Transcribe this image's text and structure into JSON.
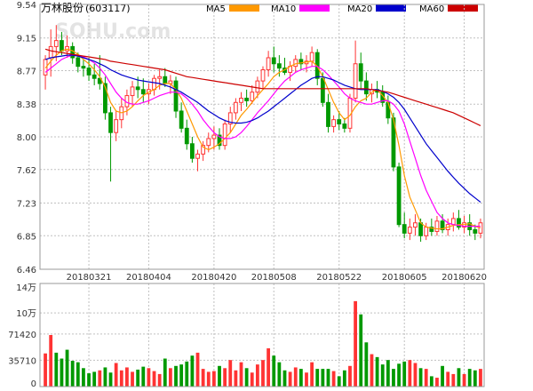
{
  "title": "万林股份",
  "code": "(603117)",
  "watermark": "SOHU.com",
  "legend": [
    {
      "label": "MA5",
      "color": "#FF9900"
    },
    {
      "label": "MA10",
      "color": "#FF00FF"
    },
    {
      "label": "MA20",
      "color": "#0000CC"
    },
    {
      "label": "MA60",
      "color": "#CC0000"
    }
  ],
  "colors": {
    "up": "#FF3333",
    "down": "#009900",
    "grid": "#C0C0C0",
    "axis_text": "#333333"
  },
  "chart_data": [
    {
      "type": "candlestick",
      "yticks": [
        "9.54",
        "9.15",
        "8.77",
        "8.38",
        "8.00",
        "7.62",
        "7.23",
        "6.85",
        "6.46"
      ],
      "ylim": [
        6.46,
        9.54
      ],
      "xticks": [
        "20180321",
        "20180404",
        "20180420",
        "20180508",
        "20180522",
        "20180605",
        "20180620"
      ],
      "xtick_index": [
        8,
        19,
        31,
        42,
        54,
        66,
        77
      ],
      "ohlc": [
        [
          8.72,
          8.95,
          8.55,
          8.9
        ],
        [
          8.92,
          9.25,
          8.7,
          9.05
        ],
        [
          9.05,
          9.3,
          8.88,
          9.12
        ],
        [
          9.12,
          9.22,
          8.95,
          9.0
        ],
        [
          9.0,
          9.18,
          8.92,
          9.05
        ],
        [
          9.05,
          9.1,
          8.85,
          8.92
        ],
        [
          8.92,
          8.98,
          8.75,
          8.82
        ],
        [
          8.82,
          8.9,
          8.7,
          8.8
        ],
        [
          8.8,
          8.92,
          8.65,
          8.72
        ],
        [
          8.72,
          8.85,
          8.6,
          8.68
        ],
        [
          8.68,
          8.95,
          8.55,
          8.62
        ],
        [
          8.62,
          8.7,
          8.2,
          8.28
        ],
        [
          8.28,
          8.35,
          7.48,
          8.05
        ],
        [
          8.05,
          8.3,
          7.95,
          8.2
        ],
        [
          8.2,
          8.45,
          8.1,
          8.35
        ],
        [
          8.35,
          8.55,
          8.25,
          8.48
        ],
        [
          8.48,
          8.65,
          8.35,
          8.58
        ],
        [
          8.58,
          8.7,
          8.45,
          8.55
        ],
        [
          8.55,
          8.68,
          8.4,
          8.5
        ],
        [
          8.5,
          8.62,
          8.38,
          8.55
        ],
        [
          8.55,
          8.72,
          8.48,
          8.68
        ],
        [
          8.68,
          8.78,
          8.55,
          8.7
        ],
        [
          8.7,
          8.8,
          8.58,
          8.62
        ],
        [
          8.62,
          8.72,
          8.5,
          8.65
        ],
        [
          8.65,
          8.7,
          8.22,
          8.3
        ],
        [
          8.3,
          8.4,
          8.05,
          8.1
        ],
        [
          8.1,
          8.2,
          7.85,
          7.92
        ],
        [
          7.92,
          8.0,
          7.7,
          7.75
        ],
        [
          7.75,
          7.85,
          7.6,
          7.8
        ],
        [
          7.8,
          7.95,
          7.72,
          7.9
        ],
        [
          7.9,
          8.05,
          7.82,
          7.98
        ],
        [
          7.98,
          8.12,
          7.85,
          8.02
        ],
        [
          8.02,
          8.1,
          7.85,
          7.9
        ],
        [
          7.9,
          8.2,
          7.85,
          8.15
        ],
        [
          8.15,
          8.35,
          8.05,
          8.28
        ],
        [
          8.28,
          8.45,
          8.2,
          8.4
        ],
        [
          8.4,
          8.52,
          8.3,
          8.45
        ],
        [
          8.45,
          8.55,
          8.35,
          8.42
        ],
        [
          8.42,
          8.6,
          8.38,
          8.52
        ],
        [
          8.52,
          8.7,
          8.45,
          8.65
        ],
        [
          8.65,
          8.82,
          8.55,
          8.78
        ],
        [
          8.78,
          9.0,
          8.7,
          8.92
        ],
        [
          8.92,
          9.05,
          8.75,
          8.85
        ],
        [
          8.85,
          8.95,
          8.7,
          8.8
        ],
        [
          8.8,
          8.92,
          8.72,
          8.75
        ],
        [
          8.75,
          8.88,
          8.65,
          8.82
        ],
        [
          8.82,
          8.95,
          8.75,
          8.9
        ],
        [
          8.9,
          8.98,
          8.78,
          8.85
        ],
        [
          8.85,
          8.95,
          8.75,
          8.88
        ],
        [
          8.88,
          9.05,
          8.82,
          8.98
        ],
        [
          8.98,
          9.02,
          8.6,
          8.68
        ],
        [
          8.68,
          8.75,
          8.35,
          8.4
        ],
        [
          8.4,
          8.5,
          8.05,
          8.12
        ],
        [
          8.12,
          8.25,
          8.05,
          8.2
        ],
        [
          8.2,
          8.3,
          8.08,
          8.15
        ],
        [
          8.15,
          8.22,
          8.05,
          8.1
        ],
        [
          8.1,
          8.5,
          8.05,
          8.45
        ],
        [
          8.45,
          9.12,
          8.4,
          8.85
        ],
        [
          8.85,
          8.98,
          8.55,
          8.65
        ],
        [
          8.65,
          8.75,
          8.42,
          8.5
        ],
        [
          8.5,
          8.62,
          8.4,
          8.55
        ],
        [
          8.55,
          8.65,
          8.45,
          8.52
        ],
        [
          8.52,
          8.6,
          8.35,
          8.4
        ],
        [
          8.4,
          8.48,
          8.15,
          8.22
        ],
        [
          8.22,
          8.28,
          7.6,
          7.65
        ],
        [
          7.65,
          7.7,
          6.95,
          6.98
        ],
        [
          6.98,
          7.12,
          6.82,
          6.88
        ],
        [
          6.88,
          7.05,
          6.8,
          6.95
        ],
        [
          6.95,
          7.1,
          6.85,
          7.0
        ],
        [
          7.0,
          7.05,
          6.78,
          6.85
        ],
        [
          6.85,
          7.0,
          6.8,
          6.95
        ],
        [
          6.95,
          7.05,
          6.85,
          6.9
        ],
        [
          6.9,
          7.08,
          6.85,
          7.02
        ],
        [
          7.02,
          7.1,
          6.88,
          6.92
        ],
        [
          6.92,
          7.05,
          6.85,
          6.98
        ],
        [
          6.98,
          7.12,
          6.9,
          7.05
        ],
        [
          7.05,
          7.15,
          6.92,
          6.95
        ],
        [
          6.95,
          7.08,
          6.88,
          7.0
        ],
        [
          7.0,
          7.1,
          6.85,
          6.92
        ],
        [
          6.92,
          6.98,
          6.8,
          6.88
        ],
        [
          6.88,
          7.05,
          6.82,
          7.0
        ]
      ],
      "ma5": [
        8.8,
        8.88,
        8.95,
        9.0,
        9.02,
        9.0,
        8.96,
        8.9,
        8.85,
        8.78,
        8.7,
        8.58,
        8.4,
        8.3,
        8.28,
        8.3,
        8.35,
        8.42,
        8.48,
        8.52,
        8.55,
        8.6,
        8.62,
        8.62,
        8.55,
        8.45,
        8.3,
        8.15,
        8.0,
        7.88,
        7.85,
        7.88,
        7.92,
        7.98,
        8.05,
        8.15,
        8.25,
        8.32,
        8.4,
        8.48,
        8.55,
        8.62,
        8.7,
        8.75,
        8.78,
        8.82,
        8.85,
        8.86,
        8.87,
        8.88,
        8.82,
        8.7,
        8.55,
        8.4,
        8.28,
        8.2,
        8.25,
        8.35,
        8.42,
        8.45,
        8.52,
        8.55,
        8.48,
        8.4,
        8.2,
        7.9,
        7.55,
        7.3,
        7.15,
        7.0,
        6.95,
        6.94,
        6.93,
        6.93,
        6.95,
        6.97,
        6.98,
        6.98,
        6.99,
        6.96,
        6.94
      ],
      "ma10": [
        8.75,
        8.8,
        8.85,
        8.9,
        8.93,
        8.95,
        8.95,
        8.93,
        8.9,
        8.86,
        8.8,
        8.72,
        8.62,
        8.52,
        8.45,
        8.4,
        8.38,
        8.38,
        8.4,
        8.42,
        8.45,
        8.48,
        8.5,
        8.52,
        8.52,
        8.5,
        8.45,
        8.38,
        8.3,
        8.2,
        8.12,
        8.05,
        8.0,
        7.98,
        7.98,
        8.0,
        8.05,
        8.12,
        8.2,
        8.28,
        8.35,
        8.42,
        8.5,
        8.58,
        8.65,
        8.7,
        8.75,
        8.78,
        8.8,
        8.82,
        8.82,
        8.78,
        8.72,
        8.65,
        8.58,
        8.5,
        8.45,
        8.42,
        8.4,
        8.38,
        8.38,
        8.4,
        8.42,
        8.42,
        8.38,
        8.3,
        8.15,
        7.95,
        7.75,
        7.55,
        7.38,
        7.25,
        7.12,
        7.05,
        7.0,
        6.98,
        6.97,
        6.96,
        6.96,
        6.96,
        6.96
      ],
      "ma20": [
        8.9,
        8.92,
        8.93,
        8.94,
        8.95,
        8.95,
        8.94,
        8.92,
        8.9,
        8.88,
        8.85,
        8.82,
        8.78,
        8.75,
        8.72,
        8.7,
        8.68,
        8.66,
        8.65,
        8.64,
        8.63,
        8.62,
        8.6,
        8.58,
        8.55,
        8.52,
        8.48,
        8.44,
        8.4,
        8.35,
        8.3,
        8.26,
        8.22,
        8.19,
        8.17,
        8.16,
        8.16,
        8.17,
        8.19,
        8.22,
        8.26,
        8.3,
        8.35,
        8.4,
        8.45,
        8.5,
        8.55,
        8.6,
        8.64,
        8.68,
        8.7,
        8.7,
        8.68,
        8.66,
        8.63,
        8.6,
        8.58,
        8.56,
        8.55,
        8.55,
        8.55,
        8.55,
        8.53,
        8.5,
        8.46,
        8.4,
        8.32,
        8.22,
        8.12,
        8.02,
        7.92,
        7.84,
        7.76,
        7.68,
        7.6,
        7.53,
        7.46,
        7.4,
        7.34,
        7.29,
        7.24
      ],
      "ma60": [
        9.02,
        9.0,
        8.99,
        8.98,
        8.97,
        8.96,
        8.95,
        8.94,
        8.93,
        8.92,
        8.91,
        8.9,
        8.88,
        8.87,
        8.86,
        8.85,
        8.84,
        8.83,
        8.82,
        8.81,
        8.8,
        8.79,
        8.78,
        8.76,
        8.74,
        8.72,
        8.7,
        8.69,
        8.68,
        8.67,
        8.66,
        8.65,
        8.64,
        8.63,
        8.62,
        8.61,
        8.6,
        8.59,
        8.58,
        8.57,
        8.56,
        8.56,
        8.56,
        8.56,
        8.56,
        8.56,
        8.56,
        8.56,
        8.56,
        8.56,
        8.56,
        8.56,
        8.56,
        8.56,
        8.56,
        8.56,
        8.56,
        8.56,
        8.56,
        8.56,
        8.55,
        8.54,
        8.53,
        8.52,
        8.5,
        8.48,
        8.46,
        8.44,
        8.42,
        8.4,
        8.38,
        8.36,
        8.34,
        8.32,
        8.3,
        8.28,
        8.25,
        8.22,
        8.19,
        8.16,
        8.13
      ]
    },
    {
      "type": "bar",
      "yticks": [
        "14万",
        "10万",
        "71420",
        "35710",
        "0"
      ],
      "ylim": [
        0,
        140000
      ],
      "volume": [
        45000,
        70000,
        46000,
        38000,
        50000,
        35000,
        33000,
        25000,
        18000,
        20000,
        22000,
        26000,
        19000,
        32000,
        22000,
        26000,
        20000,
        23000,
        27000,
        25000,
        21000,
        17000,
        38000,
        25000,
        28000,
        30000,
        34000,
        42000,
        46000,
        24000,
        20000,
        21000,
        28000,
        25000,
        36000,
        22000,
        33000,
        25000,
        19000,
        30000,
        36000,
        52000,
        42000,
        33000,
        22000,
        20000,
        26000,
        24000,
        19000,
        33000,
        24000,
        24000,
        24000,
        21000,
        14000,
        22000,
        28000,
        116000,
        98000,
        60000,
        44000,
        40000,
        30000,
        36000,
        24000,
        31000,
        34000,
        36000,
        32000,
        25000,
        24000,
        14000,
        12000,
        28000,
        20000,
        17000,
        25000,
        17000,
        24000,
        22000,
        24000
      ],
      "direction": [
        1,
        1,
        0,
        0,
        0,
        0,
        0,
        0,
        0,
        0,
        1,
        0,
        0,
        1,
        1,
        1,
        1,
        0,
        0,
        1,
        1,
        1,
        0,
        1,
        0,
        0,
        0,
        0,
        1,
        1,
        1,
        1,
        0,
        1,
        1,
        1,
        1,
        0,
        1,
        1,
        1,
        1,
        0,
        0,
        0,
        1,
        1,
        0,
        1,
        1,
        0,
        0,
        0,
        1,
        0,
        0,
        1,
        1,
        0,
        0,
        1,
        0,
        0,
        0,
        0,
        0,
        0,
        1,
        1,
        0,
        1,
        0,
        1,
        0,
        1,
        1,
        0,
        1,
        0,
        0,
        1
      ]
    }
  ]
}
